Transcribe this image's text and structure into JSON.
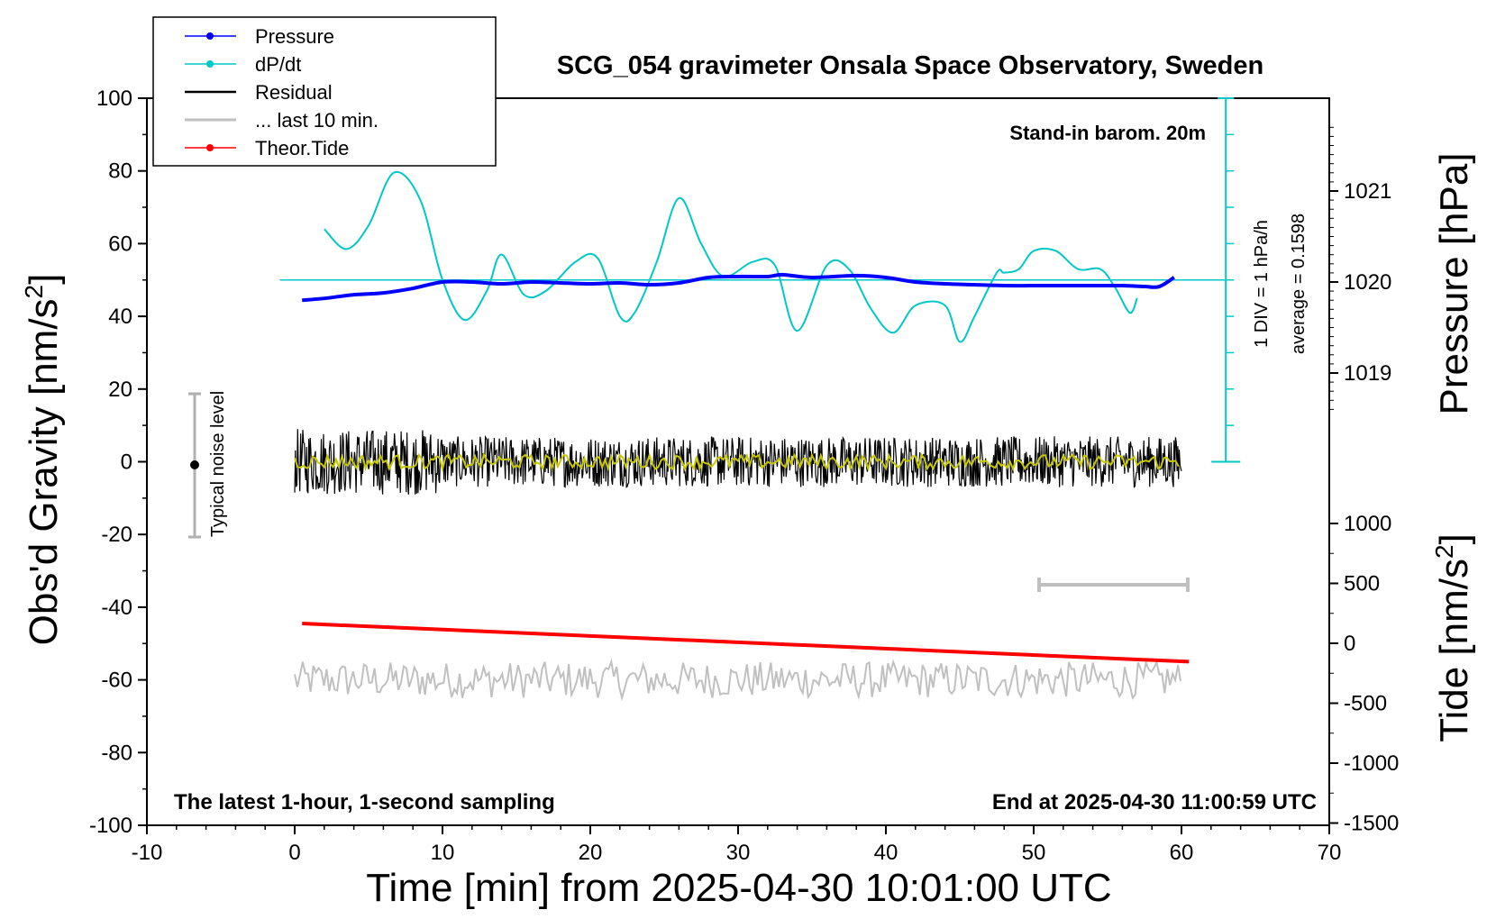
{
  "chart_data": {
    "type": "line",
    "title": "SCG_054 gravimeter Onsala Space Observatory, Sweden",
    "xlabel": "Time [min] from 2025-04-30 10:01:00 UTC",
    "ylabel_left": "Obs'd Gravity [nm/s",
    "ylabel_left_sup": "2",
    "ylabel_left_close": "]",
    "ylabel_right_pressure": "Pressure [hPa]",
    "ylabel_right_tide": "Tide [nm/s",
    "ylabel_right_tide_sup": "2",
    "ylabel_right_tide_close": "]",
    "xlim": [
      -10,
      70
    ],
    "ylim_left": [
      -100,
      100
    ],
    "xticks": [
      "-10",
      "0",
      "10",
      "20",
      "30",
      "40",
      "50",
      "60",
      "70"
    ],
    "yticks_left": [
      "-100",
      "-80",
      "-60",
      "-40",
      "-20",
      "0",
      "20",
      "40",
      "60",
      "80",
      "100"
    ],
    "yticks_pressure": [
      "1019",
      "1020",
      "1021"
    ],
    "yticks_tide": [
      "-1500",
      "-1000",
      "-500",
      "0",
      "500",
      "1000"
    ],
    "annotations": {
      "stand_in": "Stand-in barom. 20m",
      "div_label": "1 DIV = 1 hPa/h",
      "average_label": "average = 0.1598",
      "noise_label": "Typical noise level",
      "bottom_left": "The latest 1-hour, 1-second sampling",
      "bottom_right": "End at 2025-04-30 11:00:59 UTC"
    },
    "legend": [
      {
        "name": "Pressure",
        "color": "#0000ff",
        "marker": true
      },
      {
        "name": "dP/dt",
        "color": "#00c8c8",
        "marker": true
      },
      {
        "name": "Residual",
        "color": "#000000",
        "marker": false
      },
      {
        "name": "... last 10 min.",
        "color": "#c0c0c0",
        "marker": false
      },
      {
        "name": "Theor.Tide",
        "color": "#ff0000",
        "marker": true
      }
    ],
    "legend_placement": "top-left",
    "grid": false,
    "series": [
      {
        "name": "Pressure",
        "unit": "hPa",
        "color": "#0000ff",
        "x": [
          0.5,
          2,
          4,
          6,
          8,
          10,
          12,
          14,
          16,
          18,
          20,
          22,
          24,
          26,
          28,
          30,
          32,
          33,
          35,
          38,
          40,
          42,
          44,
          46,
          48,
          50,
          52,
          54,
          56,
          57.5,
          58.5,
          59.5
        ],
        "y": [
          1019.8,
          1019.82,
          1019.86,
          1019.88,
          1019.93,
          1020.0,
          1020.0,
          1019.98,
          1020.0,
          1019.99,
          1019.98,
          1019.99,
          1019.97,
          1019.99,
          1020.05,
          1020.06,
          1020.06,
          1020.08,
          1020.05,
          1020.07,
          1020.05,
          1020.0,
          1019.98,
          1019.97,
          1019.96,
          1019.96,
          1019.96,
          1019.96,
          1019.96,
          1019.95,
          1019.95,
          1020.05
        ]
      },
      {
        "name": "dP/dt",
        "unit": "nm/s2 axis",
        "color": "#00c8c8",
        "x": [
          2,
          3.5,
          5,
          6.7,
          8.5,
          10,
          11.5,
          13,
          14,
          15.5,
          17,
          19,
          20.5,
          22,
          23,
          24.5,
          26,
          27.5,
          29,
          31,
          32.5,
          34,
          36,
          37.5,
          39,
          40.5,
          42,
          44,
          45,
          46,
          47.5,
          48,
          49,
          50,
          51.5,
          53,
          54.5,
          55.5,
          56.5,
          57
        ],
        "y": [
          64,
          58.5,
          65,
          79.5,
          72,
          50,
          39,
          47,
          57,
          46,
          47,
          55,
          56,
          40,
          41,
          55,
          72.5,
          60,
          51,
          55,
          54,
          36,
          54,
          53,
          42,
          35.5,
          43,
          43,
          33,
          40,
          52,
          52,
          53,
          58,
          58,
          53,
          53,
          48,
          41,
          45
        ]
      },
      {
        "name": "dP/dt average",
        "color": "#00c8c8",
        "x": [
          -1,
          63
        ],
        "y": [
          50,
          50
        ]
      },
      {
        "name": "Residual",
        "color": "#000000",
        "x_range": [
          0,
          60
        ],
        "amplitude": 7
      },
      {
        "name": "... last 10 min.",
        "color": "#c0c0c0",
        "x_range": [
          0,
          60
        ],
        "center": -60,
        "amplitude": 5
      },
      {
        "name": "Theor.Tide",
        "color": "#ff0000",
        "x": [
          0.5,
          60.5
        ],
        "y": [
          -44.5,
          -55
        ]
      }
    ]
  }
}
